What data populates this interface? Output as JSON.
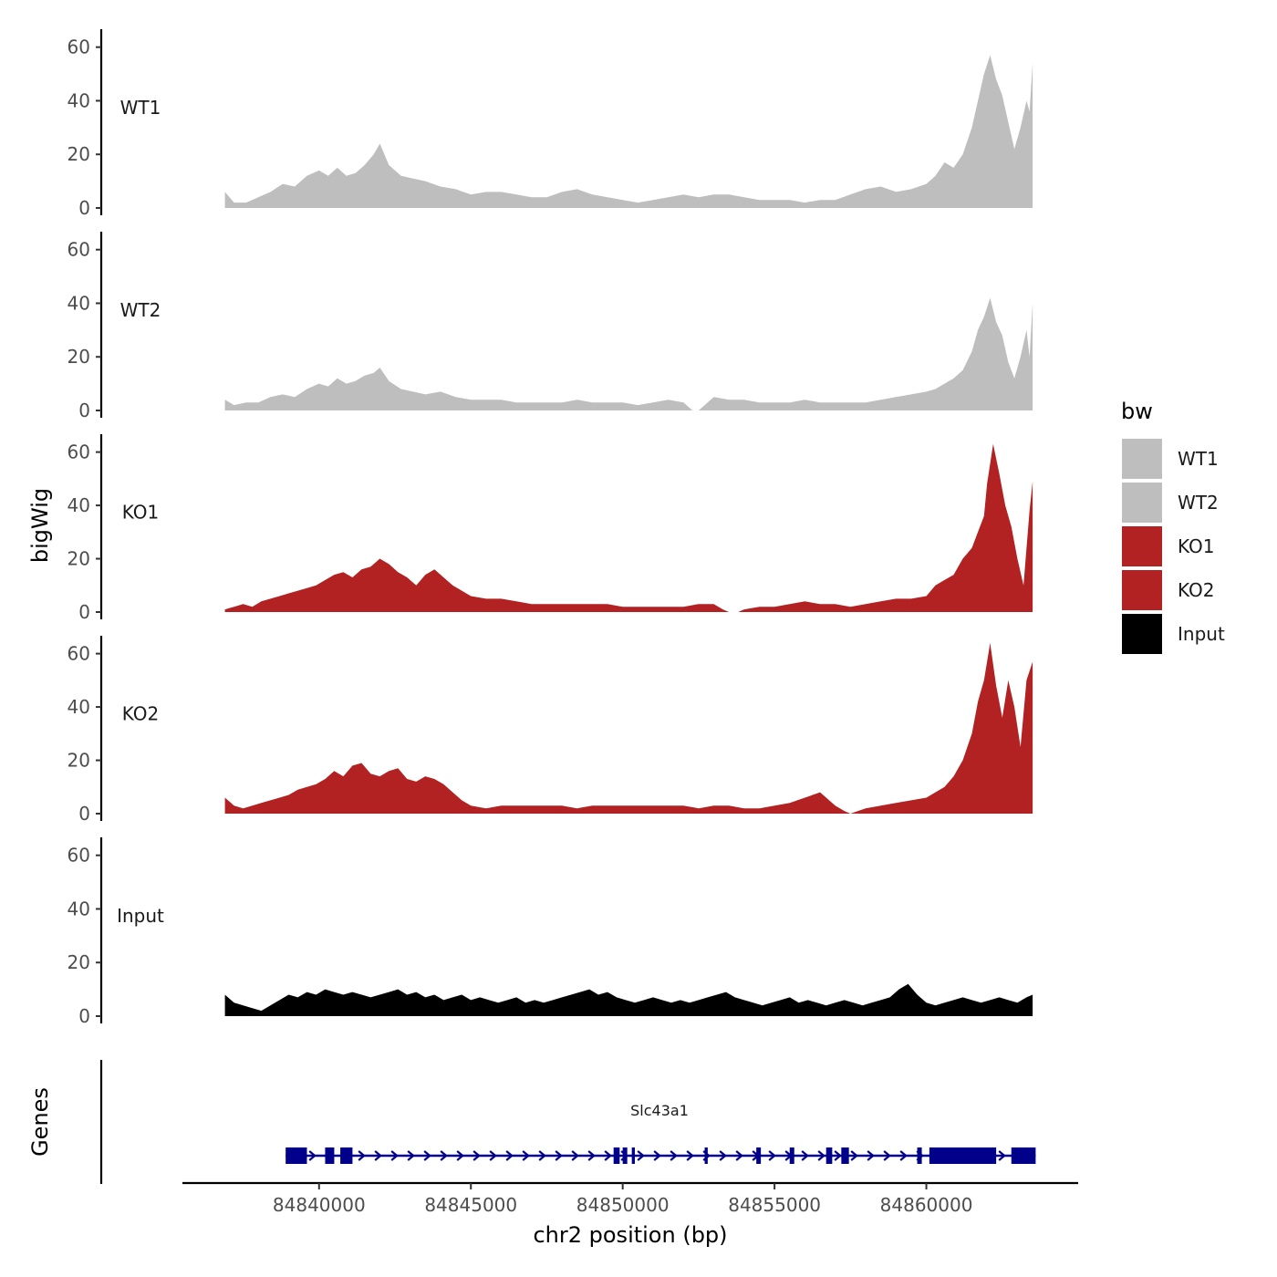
{
  "chart_data": {
    "type": "area",
    "subtype": "genome-browser-tracks",
    "ylabel": "bigWig",
    "xlabel": "chr2 position (bp)",
    "ylim": [
      0,
      65
    ],
    "yticks": [
      0,
      20,
      40,
      60
    ],
    "xlim": [
      84835500,
      84865000
    ],
    "xticks": [
      84840000,
      84845000,
      84850000,
      84855000,
      84860000
    ],
    "xtick_labels": [
      "84840000",
      "84845000",
      "84850000",
      "84855000",
      "84860000"
    ],
    "legend": {
      "title": "bw",
      "position": "right",
      "entries": [
        {
          "label": "WT1",
          "color": "#bebebe"
        },
        {
          "label": "WT2",
          "color": "#bebebe"
        },
        {
          "label": "KO1",
          "color": "#b22222"
        },
        {
          "label": "KO2",
          "color": "#b22222"
        },
        {
          "label": "Input",
          "color": "#000000"
        }
      ]
    },
    "tracks": [
      {
        "name": "WT1",
        "color": "#bebebe",
        "x": [
          84836900,
          84837200,
          84837600,
          84838000,
          84838400,
          84838800,
          84839200,
          84839600,
          84840000,
          84840300,
          84840600,
          84840900,
          84841200,
          84841500,
          84841800,
          84842000,
          84842300,
          84842700,
          84843100,
          84843500,
          84844000,
          84844500,
          84845000,
          84845500,
          84846000,
          84846500,
          84847000,
          84847500,
          84848000,
          84848500,
          84849000,
          84849500,
          84850000,
          84850500,
          84851000,
          84851500,
          84852000,
          84852500,
          84853000,
          84853500,
          84854000,
          84854500,
          84855000,
          84855500,
          84856000,
          84856500,
          84857000,
          84857500,
          84858000,
          84858500,
          84859000,
          84859500,
          84860000,
          84860300,
          84860600,
          84860900,
          84861200,
          84861500,
          84861700,
          84861900,
          84862100,
          84862300,
          84862500,
          84862700,
          84862900,
          84863100,
          84863300,
          84863400,
          84863500
        ],
        "values": [
          6,
          2,
          2,
          4,
          6,
          9,
          8,
          12,
          14,
          12,
          15,
          12,
          13,
          16,
          20,
          24,
          16,
          12,
          11,
          10,
          8,
          7,
          5,
          6,
          6,
          5,
          4,
          4,
          6,
          7,
          5,
          4,
          3,
          2,
          3,
          4,
          5,
          4,
          5,
          5,
          4,
          3,
          3,
          3,
          2,
          3,
          3,
          5,
          7,
          8,
          6,
          7,
          9,
          12,
          17,
          15,
          20,
          30,
          40,
          50,
          57,
          48,
          42,
          32,
          22,
          30,
          40,
          36,
          54
        ]
      },
      {
        "name": "WT2",
        "color": "#bebebe",
        "x": [
          84836900,
          84837200,
          84837600,
          84838000,
          84838400,
          84838800,
          84839200,
          84839600,
          84840000,
          84840300,
          84840600,
          84840900,
          84841200,
          84841500,
          84841800,
          84842000,
          84842300,
          84842700,
          84843100,
          84843500,
          84844000,
          84844500,
          84845000,
          84845500,
          84846000,
          84846500,
          84847000,
          84847500,
          84848000,
          84848500,
          84849000,
          84849500,
          84850000,
          84850500,
          84851000,
          84851500,
          84852000,
          84852300,
          84852500,
          84852700,
          84853000,
          84853500,
          84854000,
          84854500,
          84855000,
          84855500,
          84856000,
          84856500,
          84857000,
          84857500,
          84858000,
          84858500,
          84859000,
          84859500,
          84860000,
          84860300,
          84860600,
          84860900,
          84861200,
          84861500,
          84861700,
          84861900,
          84862100,
          84862300,
          84862500,
          84862700,
          84862900,
          84863100,
          84863300,
          84863400,
          84863500
        ],
        "values": [
          4,
          2,
          3,
          3,
          5,
          6,
          5,
          8,
          10,
          9,
          12,
          10,
          11,
          13,
          14,
          16,
          11,
          8,
          7,
          6,
          7,
          5,
          4,
          4,
          4,
          3,
          3,
          3,
          3,
          4,
          3,
          3,
          3,
          2,
          3,
          4,
          3,
          0,
          0,
          2,
          5,
          4,
          4,
          3,
          3,
          3,
          4,
          3,
          3,
          3,
          3,
          4,
          5,
          6,
          7,
          8,
          10,
          12,
          15,
          22,
          30,
          35,
          42,
          33,
          28,
          18,
          12,
          20,
          30,
          20,
          40
        ]
      },
      {
        "name": "KO1",
        "color": "#b22222",
        "x": [
          84836900,
          84837200,
          84837500,
          84837800,
          84838100,
          84838400,
          84838700,
          84839000,
          84839300,
          84839600,
          84839900,
          84840200,
          84840500,
          84840800,
          84841100,
          84841400,
          84841700,
          84842000,
          84842300,
          84842600,
          84842900,
          84843200,
          84843500,
          84843800,
          84844100,
          84844400,
          84844700,
          84845000,
          84845500,
          84846000,
          84846500,
          84847000,
          84847500,
          84848000,
          84848500,
          84849000,
          84849500,
          84850000,
          84850500,
          84851000,
          84851500,
          84852000,
          84852500,
          84853000,
          84853300,
          84853500,
          84853800,
          84854000,
          84854500,
          84855000,
          84855500,
          84856000,
          84856500,
          84857000,
          84857500,
          84858000,
          84858500,
          84859000,
          84859500,
          84860000,
          84860300,
          84860600,
          84860900,
          84861200,
          84861500,
          84861700,
          84861900,
          84862000,
          84862200,
          84862400,
          84862600,
          84862800,
          84863000,
          84863200,
          84863400,
          84863500
        ],
        "values": [
          1,
          2,
          3,
          2,
          4,
          5,
          6,
          7,
          8,
          9,
          10,
          12,
          14,
          15,
          13,
          16,
          17,
          20,
          18,
          15,
          13,
          10,
          14,
          16,
          13,
          10,
          8,
          6,
          5,
          5,
          4,
          3,
          3,
          3,
          3,
          3,
          3,
          2,
          2,
          2,
          2,
          2,
          3,
          3,
          1,
          0,
          0,
          1,
          2,
          2,
          3,
          4,
          3,
          3,
          2,
          3,
          4,
          5,
          5,
          6,
          10,
          12,
          14,
          20,
          24,
          30,
          36,
          48,
          63,
          52,
          40,
          32,
          20,
          10,
          38,
          49
        ]
      },
      {
        "name": "KO2",
        "color": "#b22222",
        "x": [
          84836900,
          84837200,
          84837500,
          84837800,
          84838100,
          84838400,
          84838700,
          84839000,
          84839300,
          84839600,
          84839900,
          84840200,
          84840500,
          84840800,
          84841100,
          84841400,
          84841700,
          84842000,
          84842300,
          84842600,
          84842900,
          84843200,
          84843500,
          84843800,
          84844100,
          84844400,
          84844700,
          84845000,
          84845500,
          84846000,
          84846500,
          84847000,
          84847500,
          84848000,
          84848500,
          84849000,
          84849500,
          84850000,
          84850500,
          84851000,
          84851500,
          84852000,
          84852500,
          84853000,
          84853500,
          84854000,
          84854500,
          84855000,
          84855500,
          84856000,
          84856500,
          84857000,
          84857300,
          84857500,
          84858000,
          84858500,
          84859000,
          84859500,
          84860000,
          84860300,
          84860600,
          84860900,
          84861200,
          84861500,
          84861700,
          84861900,
          84862100,
          84862300,
          84862500,
          84862700,
          84862900,
          84863100,
          84863300,
          84863500
        ],
        "values": [
          6,
          3,
          2,
          3,
          4,
          5,
          6,
          7,
          9,
          10,
          11,
          13,
          16,
          14,
          18,
          19,
          15,
          14,
          16,
          17,
          13,
          12,
          14,
          13,
          11,
          8,
          5,
          3,
          2,
          3,
          3,
          3,
          3,
          3,
          2,
          3,
          3,
          3,
          3,
          3,
          3,
          3,
          2,
          3,
          3,
          2,
          2,
          3,
          4,
          6,
          8,
          3,
          1,
          0,
          2,
          3,
          4,
          5,
          6,
          8,
          10,
          14,
          20,
          30,
          42,
          50,
          64,
          48,
          36,
          50,
          40,
          25,
          50,
          57
        ]
      },
      {
        "name": "Input",
        "color": "#000000",
        "x": [
          84836900,
          84837200,
          84837500,
          84837800,
          84838100,
          84838400,
          84838700,
          84839000,
          84839300,
          84839600,
          84839900,
          84840200,
          84840500,
          84840800,
          84841100,
          84841400,
          84841700,
          84842000,
          84842300,
          84842600,
          84842900,
          84843200,
          84843500,
          84843800,
          84844100,
          84844400,
          84844700,
          84845000,
          84845300,
          84845600,
          84845900,
          84846200,
          84846500,
          84846800,
          84847100,
          84847400,
          84847700,
          84848000,
          84848300,
          84848600,
          84848900,
          84849200,
          84849500,
          84849800,
          84850100,
          84850400,
          84850700,
          84851000,
          84851300,
          84851600,
          84851900,
          84852200,
          84852500,
          84852800,
          84853100,
          84853400,
          84853700,
          84854000,
          84854300,
          84854600,
          84854900,
          84855200,
          84855500,
          84855800,
          84856100,
          84856400,
          84856700,
          84857000,
          84857300,
          84857600,
          84857900,
          84858200,
          84858500,
          84858800,
          84859100,
          84859400,
          84859700,
          84860000,
          84860300,
          84860600,
          84860900,
          84861200,
          84861500,
          84861800,
          84862100,
          84862400,
          84862700,
          84863000,
          84863300,
          84863500
        ],
        "values": [
          8,
          5,
          4,
          3,
          2,
          4,
          6,
          8,
          7,
          9,
          8,
          10,
          9,
          8,
          9,
          8,
          7,
          8,
          9,
          10,
          8,
          9,
          7,
          8,
          6,
          7,
          8,
          6,
          7,
          6,
          5,
          6,
          7,
          5,
          6,
          5,
          6,
          7,
          8,
          9,
          10,
          8,
          9,
          7,
          6,
          5,
          6,
          7,
          6,
          5,
          6,
          5,
          6,
          7,
          8,
          9,
          7,
          6,
          5,
          4,
          5,
          6,
          7,
          5,
          6,
          5,
          4,
          5,
          6,
          5,
          4,
          5,
          6,
          7,
          10,
          12,
          8,
          5,
          4,
          5,
          6,
          7,
          6,
          5,
          6,
          7,
          6,
          5,
          7,
          8
        ]
      }
    ],
    "gene_track": {
      "label": "Genes",
      "gene_name": "Slc43a1",
      "color": "#00008b",
      "start": 84838900,
      "end": 84863600,
      "strand": "+",
      "exons": [
        [
          84838900,
          84839600
        ],
        [
          84840200,
          84840500
        ],
        [
          84840700,
          84841100
        ],
        [
          84849700,
          84849900
        ],
        [
          84850000,
          84850150
        ],
        [
          84850300,
          84850400
        ],
        [
          84852700,
          84852800
        ],
        [
          84854400,
          84854550
        ],
        [
          84855500,
          84855650
        ],
        [
          84856700,
          84856900
        ],
        [
          84857200,
          84857450
        ],
        [
          84859700,
          84859850
        ],
        [
          84860100,
          84862300
        ],
        [
          84862800,
          84863600
        ]
      ]
    }
  }
}
